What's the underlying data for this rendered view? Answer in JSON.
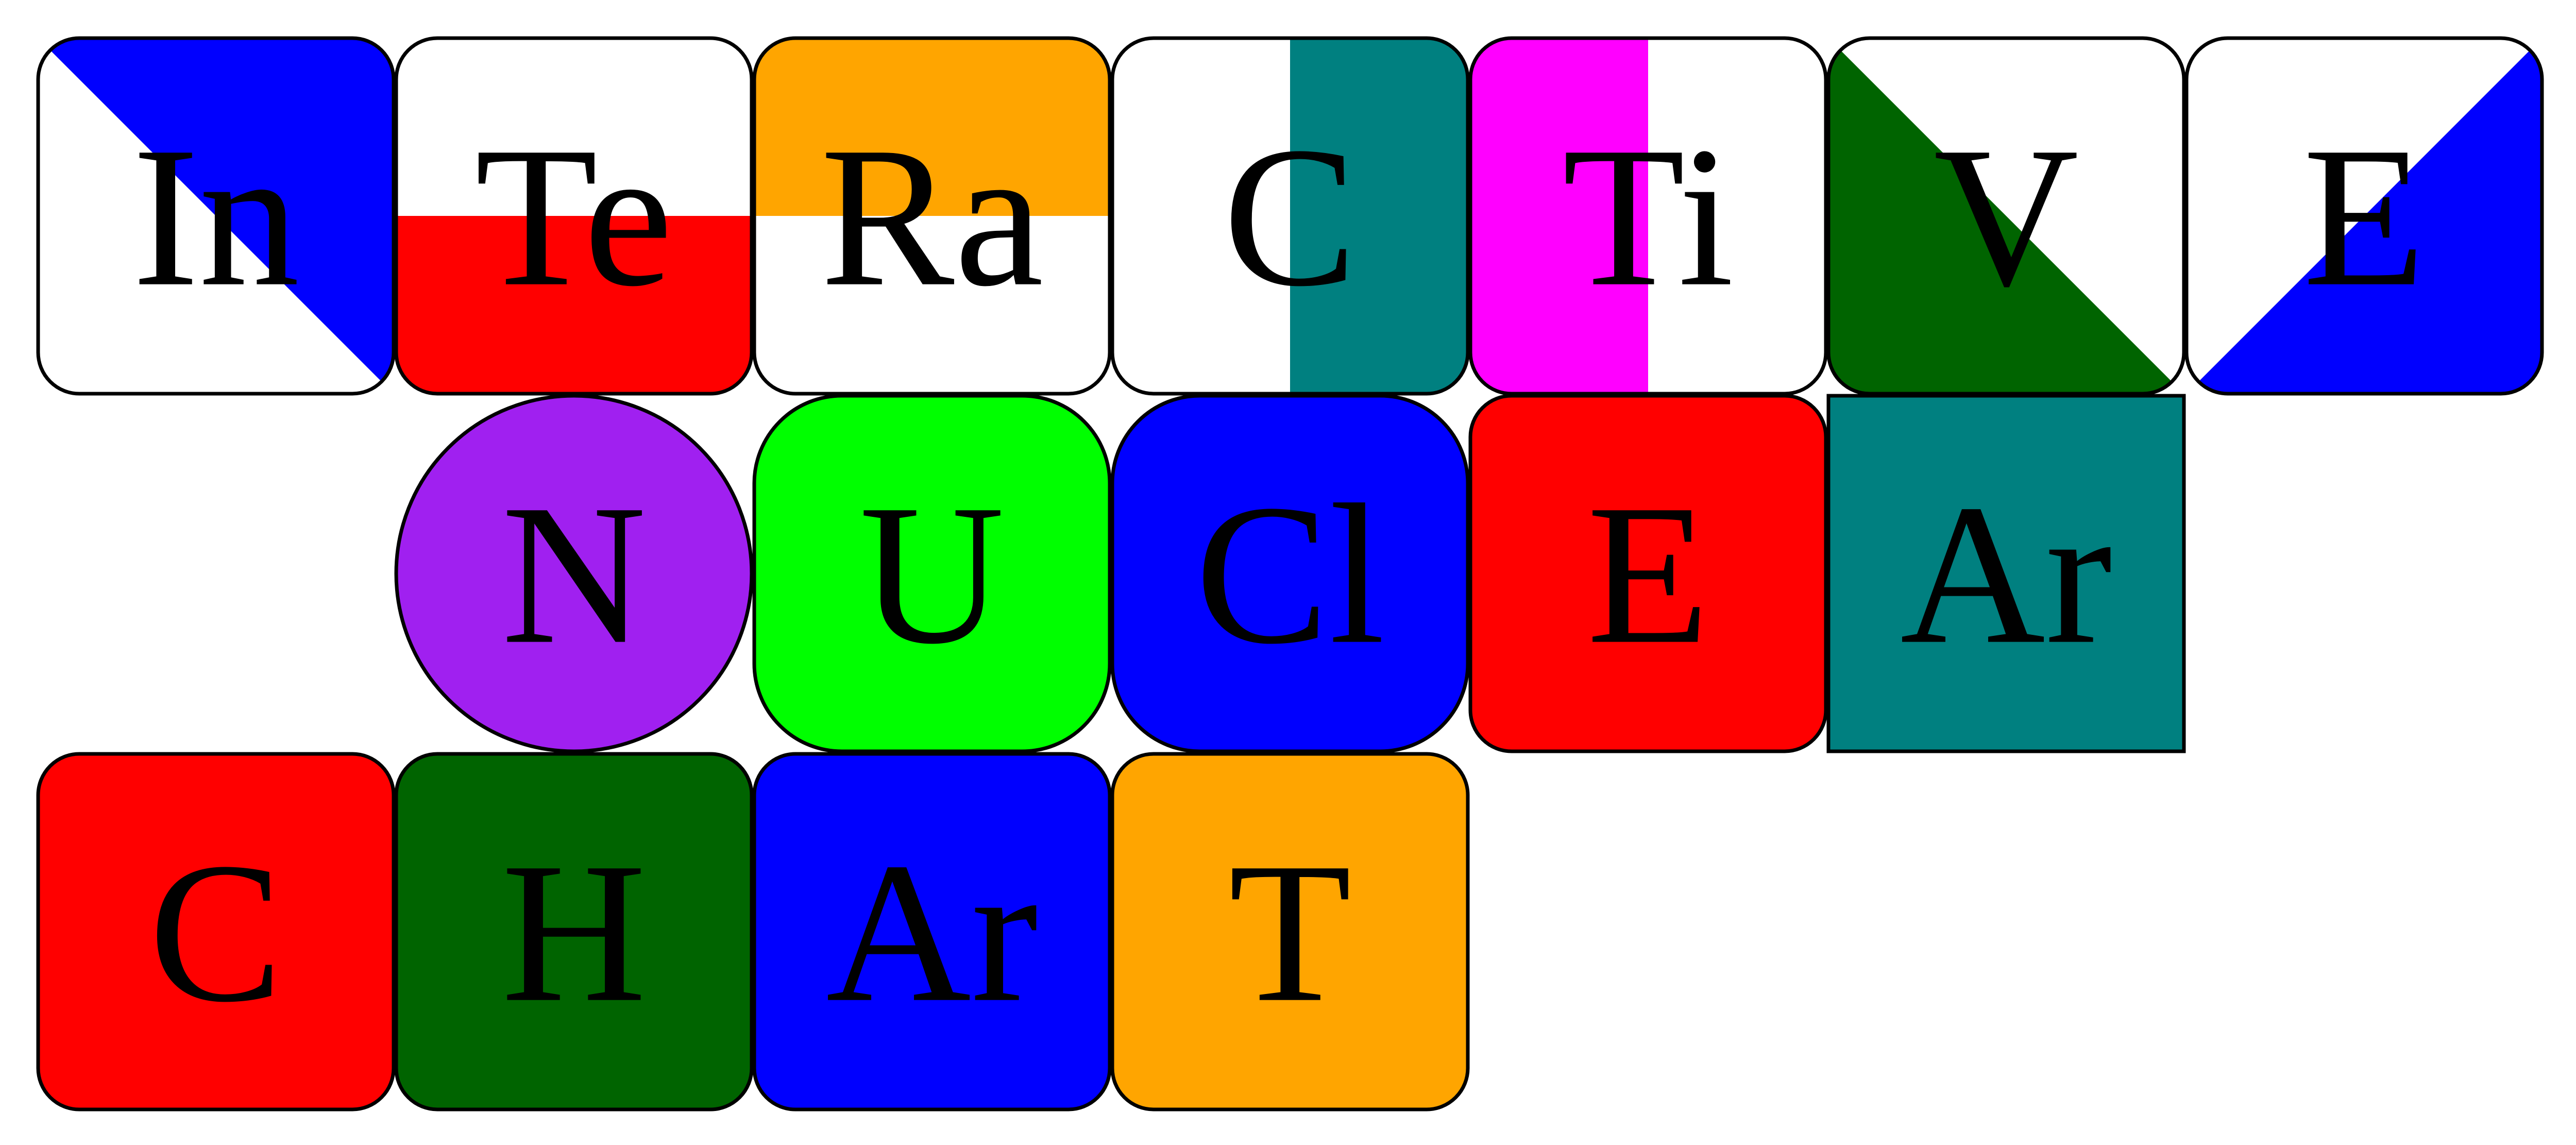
{
  "title_rows": [
    {
      "word": "InTeRaCTiVE",
      "tiles": [
        {
          "symbol": "In",
          "shape": "rounded",
          "fill": {
            "style": "diagonal-tl-br",
            "colors": [
              "#ffffff",
              "#0000ff"
            ]
          }
        },
        {
          "symbol": "Te",
          "shape": "rounded",
          "fill": {
            "style": "horizontal-split",
            "colors": [
              "#ffffff",
              "#ff0000"
            ]
          }
        },
        {
          "symbol": "Ra",
          "shape": "rounded",
          "fill": {
            "style": "horizontal-split",
            "colors": [
              "#ffa500",
              "#ffffff"
            ]
          }
        },
        {
          "symbol": "C",
          "shape": "rounded",
          "fill": {
            "style": "vertical-split",
            "colors": [
              "#ffffff",
              "#008080"
            ]
          }
        },
        {
          "symbol": "Ti",
          "shape": "rounded",
          "fill": {
            "style": "vertical-split",
            "colors": [
              "#ff00ff",
              "#ffffff"
            ]
          }
        },
        {
          "symbol": "V",
          "shape": "rounded",
          "fill": {
            "style": "diagonal-tl-br",
            "colors": [
              "#006400",
              "#ffffff"
            ]
          }
        },
        {
          "symbol": "E",
          "shape": "rounded",
          "fill": {
            "style": "diagonal-bl-tr",
            "colors": [
              "#ffffff",
              "#0000ff"
            ]
          }
        }
      ]
    },
    {
      "word": "NUClEAr",
      "tiles": [
        {
          "symbol": "N",
          "shape": "circle",
          "fill": {
            "style": "solid",
            "colors": [
              "#a020f0"
            ]
          }
        },
        {
          "symbol": "U",
          "shape": "squircle",
          "fill": {
            "style": "solid",
            "colors": [
              "#00ff00"
            ]
          }
        },
        {
          "symbol": "Cl",
          "shape": "squircle",
          "fill": {
            "style": "solid",
            "colors": [
              "#0000ff"
            ]
          }
        },
        {
          "symbol": "E",
          "shape": "rounded",
          "fill": {
            "style": "solid",
            "colors": [
              "#ff0000"
            ]
          }
        },
        {
          "symbol": "Ar",
          "shape": "square",
          "fill": {
            "style": "solid",
            "colors": [
              "#008080"
            ]
          }
        }
      ]
    },
    {
      "word": "CHArT",
      "tiles": [
        {
          "symbol": "C",
          "shape": "rounded",
          "fill": {
            "style": "solid",
            "colors": [
              "#ff0000"
            ]
          }
        },
        {
          "symbol": "H",
          "shape": "rounded",
          "fill": {
            "style": "solid",
            "colors": [
              "#006400"
            ]
          }
        },
        {
          "symbol": "Ar",
          "shape": "rounded",
          "fill": {
            "style": "solid",
            "colors": [
              "#0000ff"
            ]
          }
        },
        {
          "symbol": "T",
          "shape": "rounded",
          "fill": {
            "style": "solid",
            "colors": [
              "#ffa500"
            ]
          }
        }
      ]
    }
  ],
  "stroke_color": "#000000",
  "text_color": "#000000"
}
